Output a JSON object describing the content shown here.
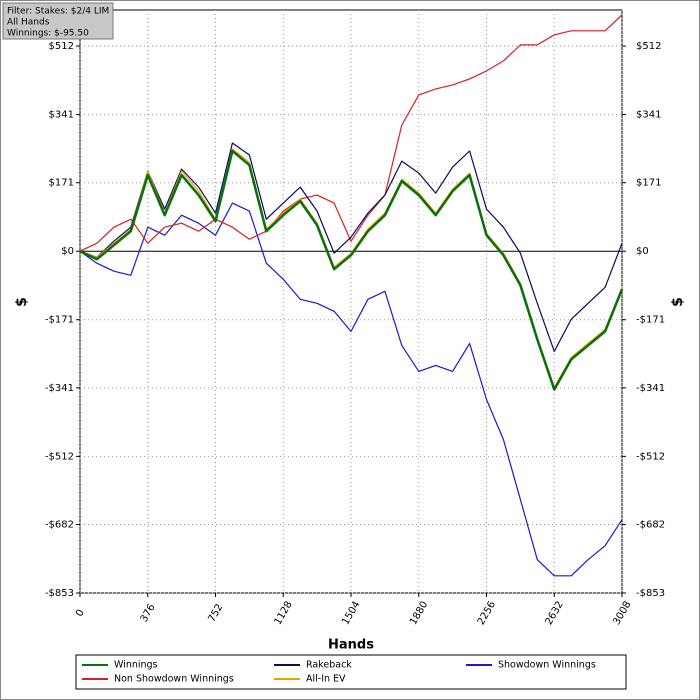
{
  "chart_data": {
    "type": "line",
    "filter_box": [
      "Filter: Stakes: $2/4 LIM",
      "All Hands",
      "Winnings: $-95.50"
    ],
    "x_label": "Hands",
    "y_label": "$",
    "y2_label": "$",
    "x": [
      0,
      94,
      188,
      282,
      376,
      470,
      564,
      658,
      752,
      846,
      940,
      1034,
      1128,
      1222,
      1316,
      1410,
      1504,
      1598,
      1692,
      1786,
      1880,
      1974,
      2068,
      2162,
      2256,
      2350,
      2444,
      2538,
      2632,
      2726,
      2820,
      2914,
      3008
    ],
    "xlim": [
      0,
      3008
    ],
    "xticks": [
      0,
      376,
      752,
      1128,
      1504,
      1880,
      2256,
      2632,
      3008
    ],
    "ylim": [
      -853,
      602
    ],
    "yticks": [
      {
        "value": 512,
        "label": "$512"
      },
      {
        "value": 341,
        "label": "$341"
      },
      {
        "value": 171,
        "label": "$171"
      },
      {
        "value": 0,
        "label": "$0"
      },
      {
        "value": -171,
        "label": "-$171"
      },
      {
        "value": -341,
        "label": "-$341"
      },
      {
        "value": -512,
        "label": "-$512"
      },
      {
        "value": -682,
        "label": "-$682"
      },
      {
        "value": -853,
        "label": "-$853"
      }
    ],
    "grid": true,
    "series": [
      {
        "name": "Showdown Winnings",
        "color": "#1a1acc",
        "values": [
          0,
          -30,
          -50,
          -60,
          60,
          40,
          90,
          70,
          40,
          120,
          100,
          -30,
          -70,
          -120,
          -130,
          -150,
          -200,
          -120,
          -100,
          -235,
          -300,
          -285,
          -300,
          -230,
          -370,
          -470,
          -620,
          -770,
          -810,
          -810,
          -770,
          -735,
          -670
        ]
      },
      {
        "name": "Non Showdown Winnings",
        "color": "#d42020",
        "values": [
          0,
          20,
          60,
          80,
          20,
          60,
          70,
          50,
          80,
          60,
          30,
          50,
          100,
          130,
          140,
          120,
          25,
          90,
          140,
          315,
          390,
          405,
          415,
          430,
          450,
          475,
          515,
          515,
          540,
          550,
          550,
          550,
          590
        ]
      },
      {
        "name": "Rakeback",
        "color": "#0a0a60",
        "values": [
          0,
          -15,
          25,
          60,
          200,
          105,
          205,
          160,
          95,
          270,
          240,
          80,
          120,
          160,
          100,
          -5,
          35,
          95,
          140,
          225,
          195,
          145,
          210,
          250,
          105,
          60,
          -5,
          -130,
          -250,
          -170,
          -130,
          -90,
          20
        ]
      },
      {
        "name": "All-In EV",
        "color": "#f0a000",
        "values": [
          0,
          -15,
          20,
          55,
          200,
          95,
          200,
          150,
          80,
          255,
          222,
          55,
          95,
          130,
          70,
          -40,
          -5,
          55,
          95,
          180,
          145,
          95,
          155,
          195,
          45,
          -5,
          -80,
          -215,
          -340,
          -265,
          -230,
          -195,
          -90
        ]
      },
      {
        "name": "Winnings",
        "color": "#0a700a",
        "values": [
          0,
          -20,
          15,
          50,
          190,
          90,
          190,
          140,
          75,
          250,
          215,
          50,
          90,
          125,
          65,
          -45,
          -10,
          50,
          90,
          175,
          140,
          90,
          150,
          190,
          40,
          -10,
          -85,
          -220,
          -345,
          -270,
          -235,
          -200,
          -95
        ]
      }
    ],
    "legend_order": [
      4,
      2,
      0,
      1,
      3
    ]
  }
}
